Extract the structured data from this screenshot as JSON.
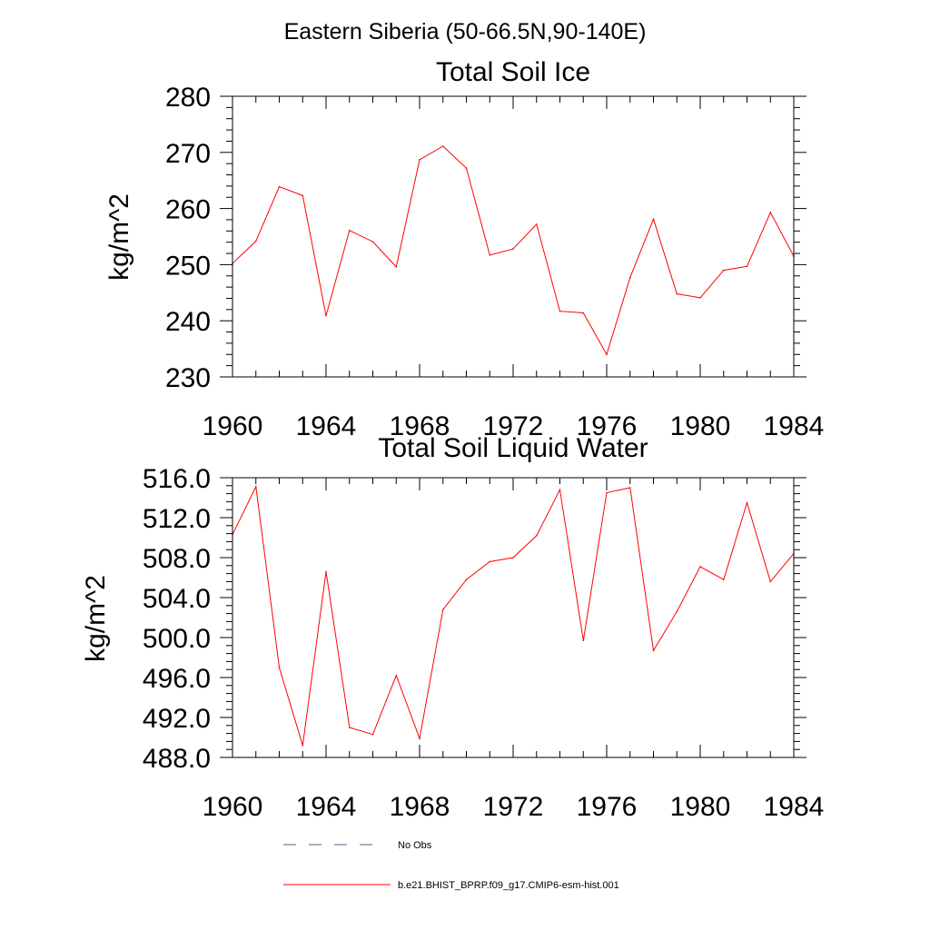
{
  "figure_title": "Eastern Siberia (50-66.5N,90-140E)",
  "legend": {
    "entries": [
      {
        "label": "No Obs",
        "style": "dashed",
        "color": "#5a5f8a"
      },
      {
        "label": "b.e21.BHIST_BPRP.f09_g17.CMIP6-esm-hist.001",
        "style": "solid",
        "color": "#ff0000"
      }
    ]
  },
  "chart_data": [
    {
      "type": "line",
      "title": "Total Soil Ice",
      "xlabel": "",
      "ylabel": "kg/m^2",
      "xlim": [
        1960,
        1984
      ],
      "ylim": [
        230,
        280
      ],
      "xticks": [
        1960,
        1964,
        1968,
        1972,
        1976,
        1980,
        1984
      ],
      "xtick_labels": [
        "1960",
        "1964",
        "1968",
        "1972",
        "1976",
        "1980",
        "1984"
      ],
      "yticks": [
        230,
        240,
        250,
        260,
        270,
        280
      ],
      "ytick_labels": [
        "230",
        "240",
        "250",
        "260",
        "270",
        "280"
      ],
      "grid": false,
      "x": [
        1960,
        1961,
        1962,
        1963,
        1964,
        1965,
        1966,
        1967,
        1968,
        1969,
        1970,
        1971,
        1972,
        1973,
        1974,
        1975,
        1976,
        1977,
        1978,
        1979,
        1980,
        1981,
        1982,
        1983,
        1984
      ],
      "series": [
        {
          "name": "b.e21.BHIST_BPRP.f09_g17.CMIP6-esm-hist.001",
          "color": "#ff0000",
          "values": [
            250.2,
            254.2,
            263.9,
            262.3,
            240.9,
            256.1,
            254.1,
            249.6,
            268.7,
            271.1,
            267.2,
            251.7,
            252.8,
            257.2,
            241.7,
            241.4,
            234.0,
            247.7,
            258.1,
            244.8,
            244.1,
            249.0,
            249.7,
            259.3,
            251.5
          ]
        }
      ]
    },
    {
      "type": "line",
      "title": "Total Soil Liquid Water",
      "xlabel": "",
      "ylabel": "kg/m^2",
      "xlim": [
        1960,
        1984
      ],
      "ylim": [
        488,
        516
      ],
      "xticks": [
        1960,
        1964,
        1968,
        1972,
        1976,
        1980,
        1984
      ],
      "xtick_labels": [
        "1960",
        "1964",
        "1968",
        "1972",
        "1976",
        "1980",
        "1984"
      ],
      "yticks": [
        488,
        492,
        496,
        500,
        504,
        508,
        512,
        516
      ],
      "ytick_labels": [
        "488.0",
        "492.0",
        "496.0",
        "500.0",
        "504.0",
        "508.0",
        "512.0",
        "516.0"
      ],
      "grid": false,
      "x": [
        1960,
        1961,
        1962,
        1963,
        1964,
        1965,
        1966,
        1967,
        1968,
        1969,
        1970,
        1971,
        1972,
        1973,
        1974,
        1975,
        1976,
        1977,
        1978,
        1979,
        1980,
        1981,
        1982,
        1983,
        1984
      ],
      "series": [
        {
          "name": "b.e21.BHIST_BPRP.f09_g17.CMIP6-esm-hist.001",
          "color": "#ff0000",
          "values": [
            510.3,
            515.1,
            497.0,
            489.2,
            506.6,
            491.0,
            490.3,
            496.2,
            489.9,
            502.8,
            505.8,
            507.6,
            508.0,
            510.2,
            514.8,
            499.7,
            514.5,
            515.0,
            498.7,
            502.6,
            507.1,
            505.8,
            513.5,
            505.6,
            508.4
          ]
        }
      ]
    }
  ]
}
